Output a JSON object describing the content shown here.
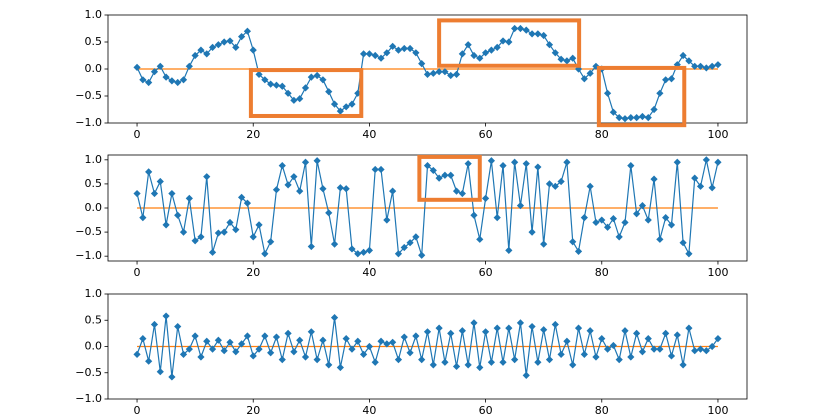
{
  "chart_data": [
    {
      "type": "line",
      "x": [
        0,
        1,
        2,
        3,
        4,
        5,
        6,
        7,
        8,
        9,
        10,
        11,
        12,
        13,
        14,
        15,
        16,
        17,
        18,
        19,
        20,
        21,
        22,
        23,
        24,
        25,
        26,
        27,
        28,
        29,
        30,
        31,
        32,
        33,
        34,
        35,
        36,
        37,
        38,
        39,
        40,
        41,
        42,
        43,
        44,
        45,
        46,
        47,
        48,
        49,
        50,
        51,
        52,
        53,
        54,
        55,
        56,
        57,
        58,
        59,
        60,
        61,
        62,
        63,
        64,
        65,
        66,
        67,
        68,
        69,
        70,
        71,
        72,
        73,
        74,
        75,
        76,
        77,
        78,
        79,
        80,
        81,
        82,
        83,
        84,
        85,
        86,
        87,
        88,
        89,
        90,
        91,
        92,
        93,
        94,
        95,
        96,
        97,
        98,
        99,
        100
      ],
      "series": [
        {
          "color": "#1f77b4",
          "values": [
            0.03,
            -0.2,
            -0.25,
            -0.05,
            0.05,
            -0.15,
            -0.22,
            -0.25,
            -0.2,
            0.05,
            0.25,
            0.35,
            0.28,
            0.4,
            0.45,
            0.5,
            0.52,
            0.4,
            0.6,
            0.7,
            0.35,
            -0.1,
            -0.2,
            -0.28,
            -0.3,
            -0.32,
            -0.45,
            -0.58,
            -0.55,
            -0.35,
            -0.15,
            -0.12,
            -0.2,
            -0.42,
            -0.65,
            -0.78,
            -0.7,
            -0.65,
            -0.45,
            0.28,
            0.28,
            0.25,
            0.2,
            0.3,
            0.42,
            0.35,
            0.38,
            0.38,
            0.3,
            0.1,
            -0.1,
            -0.08,
            -0.05,
            -0.05,
            -0.12,
            -0.1,
            0.28,
            0.45,
            0.25,
            0.2,
            0.3,
            0.35,
            0.4,
            0.52,
            0.5,
            0.75,
            0.75,
            0.72,
            0.65,
            0.65,
            0.62,
            0.45,
            0.3,
            0.18,
            0.15,
            0.2,
            0.0,
            -0.18,
            -0.08,
            0.05,
            0.0,
            -0.45,
            -0.8,
            -0.9,
            -0.92,
            -0.9,
            -0.9,
            -0.88,
            -0.9,
            -0.75,
            -0.45,
            -0.2,
            -0.18,
            0.08,
            0.25,
            0.15,
            0.05,
            0.05,
            0.02,
            0.05,
            0.08
          ]
        }
      ],
      "hline": {
        "value": 0,
        "color": "#ff7f0e"
      },
      "highlights": [
        {
          "x": [
            19.6,
            38.6
          ],
          "y": [
            -0.87,
            -0.02
          ],
          "color": "#ed7d31"
        },
        {
          "x": [
            52,
            76.1
          ],
          "y": [
            0.06,
            0.9
          ],
          "color": "#ed7d31"
        },
        {
          "x": [
            79.5,
            94.2
          ],
          "y": [
            -1.04,
            0.02
          ],
          "color": "#ed7d31"
        }
      ],
      "xlim": [
        -5,
        105
      ],
      "xticks": [
        0,
        20,
        40,
        60,
        80,
        100
      ],
      "ylim": [
        -1,
        1
      ],
      "yticks": [
        {
          "value": -1,
          "label": "−1.0"
        },
        {
          "value": -0.5,
          "label": "−0.5"
        },
        {
          "value": 0,
          "label": "0.0"
        },
        0.5,
        {
          "value": 1,
          "label": "1.0"
        }
      ]
    },
    {
      "type": "line",
      "x": [
        0,
        1,
        2,
        3,
        4,
        5,
        6,
        7,
        8,
        9,
        10,
        11,
        12,
        13,
        14,
        15,
        16,
        17,
        18,
        19,
        20,
        21,
        22,
        23,
        24,
        25,
        26,
        27,
        28,
        29,
        30,
        31,
        32,
        33,
        34,
        35,
        36,
        37,
        38,
        39,
        40,
        41,
        42,
        43,
        44,
        45,
        46,
        47,
        48,
        49,
        50,
        51,
        52,
        53,
        54,
        55,
        56,
        57,
        58,
        59,
        60,
        61,
        62,
        63,
        64,
        65,
        66,
        67,
        68,
        69,
        70,
        71,
        72,
        73,
        74,
        75,
        76,
        77,
        78,
        79,
        80,
        81,
        82,
        83,
        84,
        85,
        86,
        87,
        88,
        89,
        90,
        91,
        92,
        93,
        94,
        95,
        96,
        97,
        98,
        99,
        100
      ],
      "series": [
        {
          "color": "#1f77b4",
          "values": [
            0.3,
            -0.2,
            0.75,
            0.3,
            0.55,
            -0.35,
            0.3,
            -0.15,
            -0.5,
            0.2,
            -0.68,
            -0.6,
            0.65,
            -0.92,
            -0.52,
            -0.5,
            -0.3,
            -0.45,
            0.22,
            0.1,
            -0.6,
            -0.35,
            -0.95,
            -0.7,
            0.38,
            0.88,
            0.48,
            0.65,
            0.35,
            0.95,
            -0.8,
            0.98,
            0.4,
            -0.1,
            -0.75,
            0.42,
            0.4,
            -0.85,
            -0.95,
            -0.92,
            -0.88,
            0.8,
            0.8,
            -0.25,
            0.35,
            -0.95,
            -0.82,
            -0.72,
            -0.6,
            -0.98,
            0.88,
            0.78,
            0.62,
            0.68,
            0.68,
            0.35,
            0.3,
            0.92,
            -0.15,
            -0.65,
            0.2,
            0.98,
            -0.2,
            0.88,
            -0.88,
            0.95,
            0.05,
            0.92,
            -0.5,
            0.85,
            -0.75,
            0.5,
            0.45,
            0.55,
            0.95,
            -0.7,
            -0.9,
            -0.2,
            0.45,
            -0.3,
            -0.25,
            -0.4,
            -0.22,
            -0.6,
            -0.3,
            0.88,
            -0.12,
            0.05,
            -0.25,
            0.6,
            -0.65,
            -0.2,
            -0.35,
            0.95,
            -0.72,
            -0.95,
            0.62,
            0.45,
            1.0,
            0.42,
            0.95
          ]
        }
      ],
      "hline": {
        "value": 0,
        "color": "#ff7f0e"
      },
      "highlights": [
        {
          "x": [
            48.6,
            59
          ],
          "y": [
            0.17,
            1.06
          ],
          "color": "#ed7d31"
        }
      ],
      "xlim": [
        -5,
        105
      ],
      "xticks": [
        0,
        20,
        40,
        60,
        80,
        100
      ],
      "ylim": [
        -1.1,
        1.1
      ],
      "yticks": [
        {
          "value": -1,
          "label": "−1.0"
        },
        {
          "value": -0.5,
          "label": "−0.5"
        },
        {
          "value": 0,
          "label": "0.0"
        },
        0.5,
        {
          "value": 1,
          "label": "1.0"
        }
      ]
    },
    {
      "type": "line",
      "x": [
        0,
        1,
        2,
        3,
        4,
        5,
        6,
        7,
        8,
        9,
        10,
        11,
        12,
        13,
        14,
        15,
        16,
        17,
        18,
        19,
        20,
        21,
        22,
        23,
        24,
        25,
        26,
        27,
        28,
        29,
        30,
        31,
        32,
        33,
        34,
        35,
        36,
        37,
        38,
        39,
        40,
        41,
        42,
        43,
        44,
        45,
        46,
        47,
        48,
        49,
        50,
        51,
        52,
        53,
        54,
        55,
        56,
        57,
        58,
        59,
        60,
        61,
        62,
        63,
        64,
        65,
        66,
        67,
        68,
        69,
        70,
        71,
        72,
        73,
        74,
        75,
        76,
        77,
        78,
        79,
        80,
        81,
        82,
        83,
        84,
        85,
        86,
        87,
        88,
        89,
        90,
        91,
        92,
        93,
        94,
        95,
        96,
        97,
        98,
        99,
        100
      ],
      "series": [
        {
          "color": "#1f77b4",
          "values": [
            -0.15,
            0.15,
            -0.28,
            0.42,
            -0.48,
            0.58,
            -0.58,
            0.38,
            -0.15,
            -0.05,
            0.2,
            -0.2,
            0.1,
            -0.05,
            0.12,
            -0.08,
            0.08,
            -0.1,
            0.05,
            0.2,
            -0.18,
            -0.05,
            0.2,
            -0.12,
            0.18,
            -0.25,
            0.25,
            -0.1,
            0.12,
            -0.2,
            0.28,
            -0.25,
            0.12,
            -0.35,
            0.55,
            -0.4,
            0.15,
            -0.05,
            0.1,
            -0.15,
            0.0,
            -0.3,
            0.1,
            0.05,
            0.08,
            -0.25,
            0.18,
            -0.12,
            0.2,
            -0.25,
            0.28,
            -0.35,
            0.35,
            -0.3,
            0.25,
            -0.38,
            0.3,
            -0.35,
            0.45,
            -0.4,
            0.28,
            -0.3,
            0.35,
            -0.3,
            0.35,
            -0.25,
            0.45,
            -0.55,
            0.38,
            -0.3,
            0.32,
            -0.25,
            0.42,
            -0.15,
            0.1,
            -0.35,
            0.35,
            -0.15,
            0.3,
            -0.2,
            0.15,
            -0.05,
            0.02,
            -0.25,
            0.3,
            -0.2,
            0.25,
            -0.1,
            0.15,
            -0.05,
            -0.05,
            0.25,
            -0.18,
            0.22,
            -0.35,
            0.35,
            -0.08,
            -0.05,
            -0.08,
            0.0,
            0.15
          ]
        }
      ],
      "hline": {
        "value": 0,
        "color": "#ff7f0e"
      },
      "highlights": [],
      "xlim": [
        -5,
        105
      ],
      "xticks": [
        0,
        20,
        40,
        60,
        80,
        100
      ],
      "ylim": [
        -1,
        1
      ],
      "yticks": [
        {
          "value": -1,
          "label": "−1.0"
        },
        {
          "value": -0.5,
          "label": "−0.5"
        },
        {
          "value": 0,
          "label": "0.0"
        },
        0.5,
        {
          "value": 1,
          "label": "1.0"
        }
      ]
    }
  ]
}
